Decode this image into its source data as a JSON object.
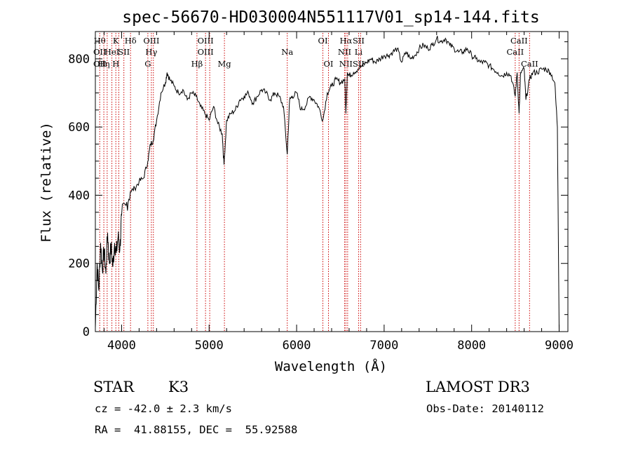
{
  "chart_data": {
    "type": "line",
    "title": "spec-56670-HD030004N551117V01_sp14-144.fits",
    "xlabel": "Wavelength (Å)",
    "ylabel": "Flux (relative)",
    "xlim": [
      3700,
      9100
    ],
    "ylim": [
      0,
      880
    ],
    "xticks": [
      4000,
      5000,
      6000,
      7000,
      8000,
      9000
    ],
    "yticks": [
      0,
      200,
      400,
      600,
      800
    ],
    "grid": false,
    "line_color": "#000000",
    "marker_color": "#cc0000",
    "spectrum": {
      "x": [
        3700,
        3720,
        3740,
        3760,
        3780,
        3800,
        3820,
        3840,
        3860,
        3880,
        3900,
        3920,
        3940,
        3960,
        3980,
        4000,
        4050,
        4100,
        4150,
        4200,
        4250,
        4300,
        4330,
        4360,
        4400,
        4450,
        4500,
        4520,
        4550,
        4600,
        4650,
        4700,
        4750,
        4800,
        4850,
        4900,
        4950,
        5000,
        5050,
        5100,
        5150,
        5170,
        5200,
        5250,
        5300,
        5350,
        5400,
        5450,
        5500,
        5550,
        5600,
        5650,
        5700,
        5750,
        5800,
        5850,
        5893,
        5920,
        5950,
        6000,
        6050,
        6100,
        6150,
        6200,
        6250,
        6300,
        6350,
        6400,
        6450,
        6500,
        6550,
        6563,
        6580,
        6600,
        6650,
        6700,
        6750,
        6800,
        6850,
        6900,
        6950,
        7000,
        7050,
        7100,
        7150,
        7200,
        7250,
        7300,
        7350,
        7400,
        7450,
        7500,
        7550,
        7600,
        7650,
        7700,
        7750,
        7800,
        7850,
        7900,
        7950,
        8000,
        8050,
        8100,
        8150,
        8200,
        8250,
        8300,
        8350,
        8400,
        8450,
        8498,
        8520,
        8542,
        8560,
        8600,
        8620,
        8662,
        8700,
        8750,
        8800,
        8850,
        8900,
        8950,
        8980,
        9000
      ],
      "y": [
        10,
        200,
        120,
        260,
        180,
        240,
        170,
        290,
        200,
        250,
        190,
        260,
        230,
        280,
        240,
        340,
        370,
        410,
        420,
        440,
        450,
        500,
        550,
        560,
        620,
        700,
        730,
        760,
        740,
        720,
        700,
        710,
        680,
        700,
        690,
        660,
        640,
        620,
        660,
        610,
        580,
        490,
        620,
        640,
        650,
        680,
        690,
        700,
        670,
        690,
        710,
        700,
        680,
        700,
        690,
        660,
        520,
        680,
        690,
        700,
        650,
        660,
        690,
        680,
        660,
        620,
        700,
        720,
        740,
        730,
        740,
        640,
        760,
        750,
        760,
        770,
        780,
        790,
        800,
        790,
        800,
        810,
        810,
        820,
        830,
        790,
        820,
        800,
        810,
        830,
        840,
        830,
        840,
        860,
        850,
        860,
        840,
        830,
        820,
        820,
        830,
        810,
        800,
        790,
        790,
        780,
        770,
        760,
        750,
        760,
        750,
        690,
        760,
        640,
        760,
        770,
        680,
        740,
        760,
        760,
        770,
        770,
        760,
        730,
        600,
        0
      ]
    },
    "line_markers": [
      {
        "x": 3750,
        "labels": [
          "Hθ",
          "OII",
          "OII"
        ]
      },
      {
        "x": 3797,
        "labels": [
          "",
          "",
          "Hη"
        ]
      },
      {
        "x": 3835,
        "labels": [
          "",
          "",
          ""
        ]
      },
      {
        "x": 3889,
        "labels": [
          "",
          "HeI",
          ""
        ]
      },
      {
        "x": 3934,
        "labels": [
          "K",
          "",
          "H"
        ]
      },
      {
        "x": 3968,
        "labels": [
          "",
          "",
          ""
        ]
      },
      {
        "x": 4026,
        "labels": [
          "",
          "SII",
          ""
        ]
      },
      {
        "x": 4102,
        "labels": [
          "Hδ",
          "",
          ""
        ]
      },
      {
        "x": 4300,
        "labels": [
          "",
          "",
          "G"
        ]
      },
      {
        "x": 4340,
        "labels": [
          "OIII",
          "Hγ",
          ""
        ]
      },
      {
        "x": 4363,
        "labels": [
          "",
          "",
          ""
        ]
      },
      {
        "x": 4861,
        "labels": [
          "",
          "",
          "Hβ"
        ]
      },
      {
        "x": 4959,
        "labels": [
          "OIII",
          "OIII",
          ""
        ]
      },
      {
        "x": 5007,
        "labels": [
          "",
          "",
          ""
        ]
      },
      {
        "x": 5175,
        "labels": [
          "",
          "",
          "Mg"
        ]
      },
      {
        "x": 5893,
        "labels": [
          "",
          "Na",
          ""
        ]
      },
      {
        "x": 6300,
        "labels": [
          "OI",
          "",
          ""
        ]
      },
      {
        "x": 6364,
        "labels": [
          "",
          "",
          "OI"
        ]
      },
      {
        "x": 6548,
        "labels": [
          "",
          "NII",
          ""
        ]
      },
      {
        "x": 6563,
        "labels": [
          "Hα",
          "",
          "NII"
        ]
      },
      {
        "x": 6583,
        "labels": [
          "",
          "",
          ""
        ]
      },
      {
        "x": 6708,
        "labels": [
          "SII",
          "Li",
          "SII"
        ]
      },
      {
        "x": 6731,
        "labels": [
          "",
          "",
          ""
        ]
      },
      {
        "x": 8498,
        "labels": [
          "",
          "CaII",
          ""
        ]
      },
      {
        "x": 8542,
        "labels": [
          "CaII",
          "",
          ""
        ]
      },
      {
        "x": 8662,
        "labels": [
          "",
          "",
          "CaII"
        ]
      }
    ]
  },
  "info": {
    "object_class": "STAR",
    "subclass": "K3",
    "survey": "LAMOST DR3",
    "redshift_text": "cz = -42.0 ± 2.3 km/s",
    "obs_date_text": "Obs-Date: 20140112",
    "coords_text": "RA =  41.88155, DEC =  55.92588"
  }
}
